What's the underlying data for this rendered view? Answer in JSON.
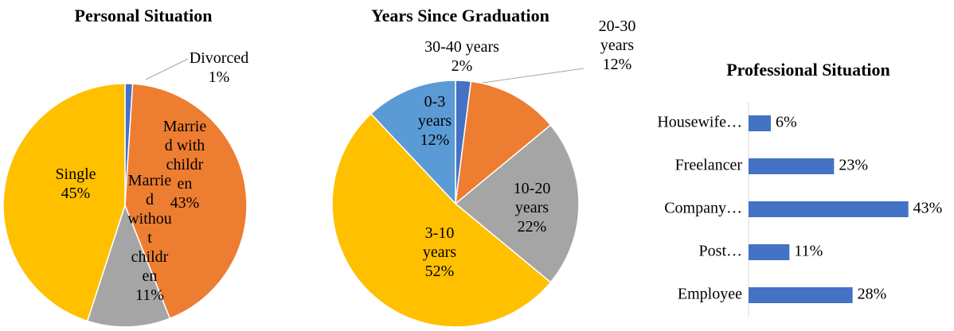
{
  "chart_data": [
    {
      "type": "pie",
      "title": "Personal Situation",
      "categories": [
        "Divorced",
        "Married with children",
        "Married without children",
        "Single"
      ],
      "values": [
        1,
        43,
        11,
        45
      ],
      "value_labels": [
        "1%",
        "43%",
        "11%",
        "45%"
      ],
      "colors": [
        "#4472c4",
        "#ed7d31",
        "#a5a5a5",
        "#ffc000"
      ]
    },
    {
      "type": "pie",
      "title": "Years Since Graduation",
      "categories": [
        "30-40 years",
        "20-30 years",
        "10-20 years",
        "3-10 years",
        "0-3 years"
      ],
      "values": [
        2,
        12,
        22,
        52,
        12
      ],
      "value_labels": [
        "2%",
        "12%",
        "22%",
        "52%",
        "12%"
      ],
      "colors": [
        "#4472c4",
        "#ed7d31",
        "#a5a5a5",
        "#ffc000",
        "#5b9bd5"
      ]
    },
    {
      "type": "hbar",
      "title": "Professional Situation",
      "categories": [
        "Housewife…",
        "Freelancer",
        "Company…",
        "Post…",
        "Employee"
      ],
      "values": [
        6,
        23,
        43,
        11,
        28
      ],
      "value_labels": [
        "6%",
        "23%",
        "43%",
        "11%",
        "28%"
      ],
      "color": "#4472c4",
      "xlim": [
        0,
        45
      ]
    }
  ]
}
